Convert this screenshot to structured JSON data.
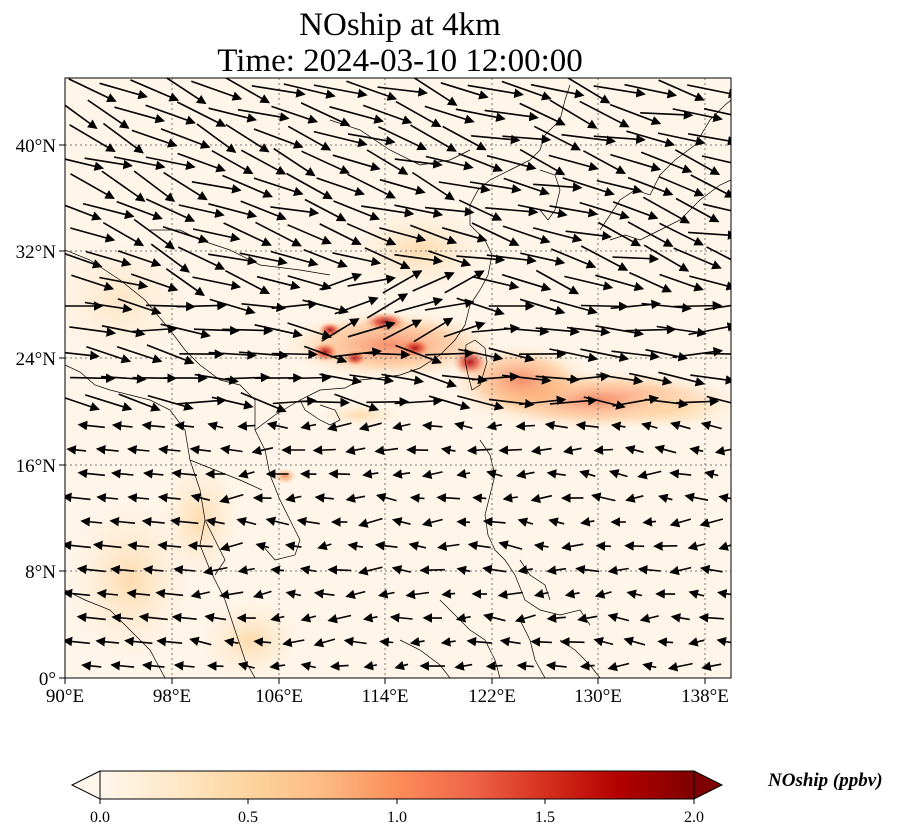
{
  "title_line1": "NOship at 4km",
  "title_line2": "Time: 2024-03-10 12:00:00",
  "lon_ticks": [
    "90°E",
    "98°E",
    "106°E",
    "114°E",
    "122°E",
    "130°E",
    "138°E"
  ],
  "lat_ticks": [
    "40°N",
    "32°N",
    "24°N",
    "16°N",
    "8°N",
    "0°"
  ],
  "colorbar": {
    "label": "NOship (ppbv)",
    "ticks": [
      "0.0",
      "0.5",
      "1.0",
      "1.5",
      "2.0"
    ],
    "min": 0.0,
    "max": 2.0,
    "colormap": [
      "#fff7ec",
      "#fee8c8",
      "#fdd49e",
      "#fdbb84",
      "#fc8d59",
      "#ef6548",
      "#d7301f",
      "#b30000",
      "#7f0000"
    ]
  },
  "map": {
    "extent": {
      "lon": [
        90,
        140
      ],
      "lat": [
        0,
        45
      ]
    },
    "background_color": "#fff5e9",
    "gridline_color": "#777777"
  }
}
